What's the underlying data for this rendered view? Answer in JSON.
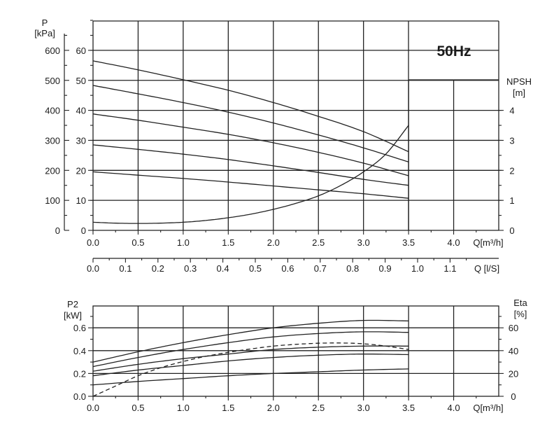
{
  "chart_data": [
    {
      "type": "line",
      "title": "",
      "badge": "50Hz",
      "x_axis": {
        "label": "Q[m³/h]",
        "range": [
          0,
          4.5
        ],
        "ticks": [
          "0.0",
          "0.5",
          "1.0",
          "1.5",
          "2.0",
          "2.5",
          "3.0",
          "3.5",
          "4.0"
        ]
      },
      "x_axis_secondary": {
        "label": "Q [l/S]",
        "range": [
          0,
          1.25
        ],
        "ticks": [
          "0.0",
          "0.1",
          "0.2",
          "0.3",
          "0.4",
          "0.5",
          "0.6",
          "0.7",
          "0.8",
          "0.9",
          "1.0",
          "1.1"
        ]
      },
      "y_axis_left_outer": {
        "label_line1": "P",
        "label_line2": "[kPa]",
        "range": [
          0,
          700
        ],
        "ticks": [
          "0",
          "100",
          "200",
          "300",
          "400",
          "500",
          "600"
        ]
      },
      "y_axis_left_inner": {
        "range": [
          0,
          70
        ],
        "ticks": [
          "0",
          "10",
          "20",
          "30",
          "40",
          "50",
          "60"
        ]
      },
      "y_axis_right": {
        "label_line1": "NPSH",
        "label_line2": "[m]",
        "range": [
          0,
          5
        ],
        "ticks": [
          "0",
          "1",
          "2",
          "3",
          "4"
        ]
      },
      "grid": true,
      "head_curves_m": [
        {
          "x": [
            0,
            0.5,
            1.0,
            1.5,
            2.0,
            2.5,
            3.0,
            3.5
          ],
          "y": [
            56.5,
            53.5,
            50.2,
            46.7,
            42.6,
            38.0,
            32.9,
            26.2
          ]
        },
        {
          "x": [
            0,
            0.5,
            1.0,
            1.5,
            2.0,
            2.5,
            3.0,
            3.5
          ],
          "y": [
            48.3,
            45.5,
            42.6,
            39.4,
            35.8,
            31.8,
            27.5,
            22.8
          ]
        },
        {
          "x": [
            0,
            0.5,
            1.0,
            1.5,
            2.0,
            2.5,
            3.0,
            3.5
          ],
          "y": [
            38.8,
            36.7,
            34.4,
            32.0,
            29.2,
            26.0,
            22.4,
            18.2
          ]
        },
        {
          "x": [
            0,
            0.5,
            1.0,
            1.5,
            2.0,
            2.5,
            3.0,
            3.5
          ],
          "y": [
            28.5,
            27.0,
            25.4,
            23.6,
            21.5,
            19.3,
            17.0,
            15.0
          ]
        },
        {
          "x": [
            0,
            0.5,
            1.0,
            1.5,
            2.0,
            2.5,
            3.0,
            3.5
          ],
          "y": [
            19.5,
            18.4,
            17.3,
            16.1,
            14.8,
            13.5,
            12.2,
            10.7
          ]
        }
      ],
      "npsh_curve_m": {
        "x": [
          0,
          0.25,
          0.5,
          0.75,
          1.0,
          1.25,
          1.5,
          1.75,
          2.0,
          2.25,
          2.5,
          2.75,
          3.0,
          3.25,
          3.5
        ],
        "y": [
          0.27,
          0.24,
          0.23,
          0.24,
          0.27,
          0.33,
          0.42,
          0.54,
          0.7,
          0.9,
          1.15,
          1.5,
          1.95,
          2.55,
          3.5
        ]
      }
    },
    {
      "type": "line",
      "title": "",
      "x_axis": {
        "label": "Q[m³/h]",
        "range": [
          0,
          4.5
        ],
        "ticks": [
          "0.0",
          "0.5",
          "1.0",
          "1.5",
          "2.0",
          "2.5",
          "3.0",
          "3.5",
          "4.0"
        ]
      },
      "y_axis_left": {
        "label_line1": "P2",
        "label_line2": "[kW]",
        "range": [
          0,
          0.8
        ],
        "ticks": [
          "0.0",
          "0.2",
          "0.4",
          "0.6"
        ]
      },
      "y_axis_right": {
        "label_line1": "Eta",
        "label_line2": "[%]",
        "range": [
          0,
          80
        ],
        "ticks": [
          "0",
          "20",
          "40",
          "60"
        ]
      },
      "grid": true,
      "power_curves_kw": [
        {
          "x": [
            0,
            0.5,
            1.0,
            1.5,
            2.0,
            2.5,
            3.0,
            3.5
          ],
          "y": [
            0.3,
            0.39,
            0.47,
            0.54,
            0.6,
            0.64,
            0.665,
            0.66
          ]
        },
        {
          "x": [
            0,
            0.5,
            1.0,
            1.5,
            2.0,
            2.5,
            3.0,
            3.5
          ],
          "y": [
            0.26,
            0.34,
            0.41,
            0.47,
            0.52,
            0.55,
            0.565,
            0.56
          ]
        },
        {
          "x": [
            0,
            0.5,
            1.0,
            1.5,
            2.0,
            2.5,
            3.0,
            3.5
          ],
          "y": [
            0.22,
            0.28,
            0.33,
            0.37,
            0.41,
            0.43,
            0.44,
            0.44
          ]
        },
        {
          "x": [
            0,
            0.5,
            1.0,
            1.5,
            2.0,
            2.5,
            3.0,
            3.5
          ],
          "y": [
            0.18,
            0.23,
            0.27,
            0.31,
            0.34,
            0.36,
            0.37,
            0.365
          ]
        },
        {
          "x": [
            0,
            0.5,
            1.0,
            1.5,
            2.0,
            2.5,
            3.0,
            3.5
          ],
          "y": [
            0.1,
            0.13,
            0.155,
            0.18,
            0.2,
            0.215,
            0.23,
            0.24
          ]
        }
      ],
      "efficiency_curve_pct": {
        "x": [
          0,
          0.25,
          0.5,
          0.75,
          1.0,
          1.25,
          1.5,
          1.75,
          2.0,
          2.25,
          2.5,
          2.75,
          3.0,
          3.25,
          3.5
        ],
        "y": [
          0,
          9,
          18,
          25,
          30.5,
          35,
          38.5,
          41.5,
          44,
          45.5,
          46.5,
          46.7,
          46,
          44,
          41
        ]
      }
    }
  ]
}
